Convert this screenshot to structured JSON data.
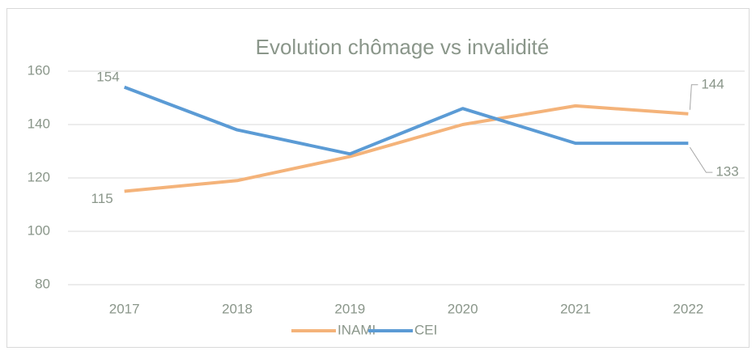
{
  "chart_data": {
    "type": "line",
    "title": "Evolution chômage vs invalidité",
    "categories": [
      "2017",
      "2018",
      "2019",
      "2020",
      "2021",
      "2022"
    ],
    "series": [
      {
        "name": "INAMI",
        "color": "#f4b37a",
        "values": [
          115,
          119,
          128,
          140,
          147,
          144
        ],
        "value_labels": [
          "115",
          null,
          null,
          null,
          null,
          "144"
        ]
      },
      {
        "name": "CEI",
        "color": "#5b9bd5",
        "values": [
          154,
          138,
          129,
          146,
          133,
          133
        ],
        "value_labels": [
          "154",
          null,
          null,
          null,
          null,
          "133"
        ]
      }
    ],
    "ylim": [
      80,
      160
    ],
    "yticks": [
      80,
      100,
      120,
      140,
      160
    ],
    "grid": true,
    "legend": "bottom"
  }
}
